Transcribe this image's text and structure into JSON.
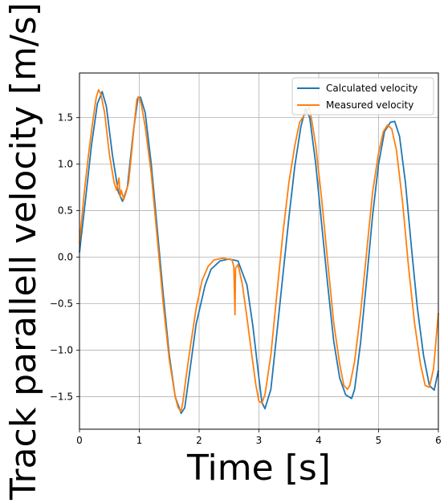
{
  "chart_data": {
    "type": "line",
    "xlabel": "Time [s]",
    "ylabel": "Track parallell velocity [m/s]",
    "xlim": [
      0,
      6
    ],
    "ylim": [
      -1.85,
      1.98
    ],
    "xticks": [
      0,
      1,
      2,
      3,
      4,
      5,
      6
    ],
    "yticks": [
      -1.5,
      -1.0,
      -0.5,
      0.0,
      0.5,
      1.0,
      1.5
    ],
    "xtick_labels": [
      "0",
      "1",
      "2",
      "3",
      "4",
      "5",
      "6"
    ],
    "ytick_labels": [
      "−1.5",
      "−1.0",
      "−0.5",
      "0.0",
      "0.5",
      "1.0",
      "1.5"
    ],
    "grid": true,
    "legend_position": "top-right",
    "series": [
      {
        "name": "Calculated velocity",
        "color": "#1f77b4",
        "points": [
          [
            0,
            0.05
          ],
          [
            0.1,
            0.62
          ],
          [
            0.2,
            1.2
          ],
          [
            0.3,
            1.65
          ],
          [
            0.38,
            1.78
          ],
          [
            0.45,
            1.62
          ],
          [
            0.55,
            1.1
          ],
          [
            0.65,
            0.7
          ],
          [
            0.72,
            0.6
          ],
          [
            0.8,
            0.75
          ],
          [
            0.9,
            1.35
          ],
          [
            0.98,
            1.72
          ],
          [
            1.02,
            1.72
          ],
          [
            1.1,
            1.55
          ],
          [
            1.2,
            1.0
          ],
          [
            1.3,
            0.3
          ],
          [
            1.4,
            -0.4
          ],
          [
            1.5,
            -1.05
          ],
          [
            1.6,
            -1.5
          ],
          [
            1.7,
            -1.68
          ],
          [
            1.76,
            -1.62
          ],
          [
            1.85,
            -1.2
          ],
          [
            1.95,
            -0.72
          ],
          [
            2.1,
            -0.3
          ],
          [
            2.2,
            -0.13
          ],
          [
            2.35,
            -0.04
          ],
          [
            2.5,
            -0.02
          ],
          [
            2.65,
            -0.04
          ],
          [
            2.8,
            -0.3
          ],
          [
            2.9,
            -0.75
          ],
          [
            3.0,
            -1.3
          ],
          [
            3.05,
            -1.56
          ],
          [
            3.1,
            -1.63
          ],
          [
            3.2,
            -1.42
          ],
          [
            3.3,
            -0.82
          ],
          [
            3.4,
            -0.2
          ],
          [
            3.5,
            0.42
          ],
          [
            3.6,
            0.98
          ],
          [
            3.7,
            1.4
          ],
          [
            3.78,
            1.6
          ],
          [
            3.85,
            1.5
          ],
          [
            3.95,
            1.0
          ],
          [
            4.05,
            0.35
          ],
          [
            4.15,
            -0.3
          ],
          [
            4.25,
            -0.9
          ],
          [
            4.35,
            -1.3
          ],
          [
            4.45,
            -1.48
          ],
          [
            4.55,
            -1.52
          ],
          [
            4.6,
            -1.42
          ],
          [
            4.7,
            -0.92
          ],
          [
            4.8,
            -0.25
          ],
          [
            4.9,
            0.45
          ],
          [
            5.0,
            1.0
          ],
          [
            5.1,
            1.35
          ],
          [
            5.2,
            1.45
          ],
          [
            5.27,
            1.46
          ],
          [
            5.35,
            1.3
          ],
          [
            5.45,
            0.8
          ],
          [
            5.55,
            0.1
          ],
          [
            5.65,
            -0.55
          ],
          [
            5.75,
            -1.05
          ],
          [
            5.85,
            -1.38
          ],
          [
            5.93,
            -1.43
          ],
          [
            6.0,
            -1.22
          ]
        ]
      },
      {
        "name": "Measured velocity",
        "color": "#ff7f0e",
        "points": [
          [
            0,
            0.15
          ],
          [
            0.08,
            0.7
          ],
          [
            0.15,
            1.1
          ],
          [
            0.22,
            1.45
          ],
          [
            0.28,
            1.72
          ],
          [
            0.32,
            1.8
          ],
          [
            0.36,
            1.75
          ],
          [
            0.42,
            1.55
          ],
          [
            0.5,
            1.1
          ],
          [
            0.58,
            0.8
          ],
          [
            0.62,
            0.72
          ],
          [
            0.66,
            0.85
          ],
          [
            0.68,
            0.65
          ],
          [
            0.7,
            0.72
          ],
          [
            0.74,
            0.62
          ],
          [
            0.78,
            0.7
          ],
          [
            0.82,
            0.8
          ],
          [
            0.86,
            1.05
          ],
          [
            0.92,
            1.45
          ],
          [
            0.96,
            1.7
          ],
          [
            1.0,
            1.72
          ],
          [
            1.04,
            1.62
          ],
          [
            1.1,
            1.4
          ],
          [
            1.2,
            0.9
          ],
          [
            1.3,
            0.2
          ],
          [
            1.4,
            -0.5
          ],
          [
            1.5,
            -1.1
          ],
          [
            1.6,
            -1.5
          ],
          [
            1.65,
            -1.62
          ],
          [
            1.7,
            -1.66
          ],
          [
            1.73,
            -1.55
          ],
          [
            1.78,
            -1.3
          ],
          [
            1.85,
            -0.98
          ],
          [
            1.95,
            -0.55
          ],
          [
            2.05,
            -0.25
          ],
          [
            2.15,
            -0.1
          ],
          [
            2.25,
            -0.03
          ],
          [
            2.4,
            -0.01
          ],
          [
            2.55,
            -0.03
          ],
          [
            2.58,
            -0.1
          ],
          [
            2.6,
            -0.62
          ],
          [
            2.61,
            -0.12
          ],
          [
            2.65,
            -0.08
          ],
          [
            2.72,
            -0.28
          ],
          [
            2.8,
            -0.65
          ],
          [
            2.88,
            -1.05
          ],
          [
            2.95,
            -1.38
          ],
          [
            3.0,
            -1.55
          ],
          [
            3.05,
            -1.57
          ],
          [
            3.1,
            -1.48
          ],
          [
            3.2,
            -1.05
          ],
          [
            3.3,
            -0.4
          ],
          [
            3.4,
            0.25
          ],
          [
            3.5,
            0.8
          ],
          [
            3.6,
            1.2
          ],
          [
            3.68,
            1.45
          ],
          [
            3.75,
            1.52
          ],
          [
            3.8,
            1.55
          ],
          [
            3.84,
            1.62
          ],
          [
            3.88,
            1.48
          ],
          [
            3.95,
            1.2
          ],
          [
            4.05,
            0.62
          ],
          [
            4.15,
            -0.05
          ],
          [
            4.25,
            -0.7
          ],
          [
            4.35,
            -1.15
          ],
          [
            4.42,
            -1.38
          ],
          [
            4.48,
            -1.42
          ],
          [
            4.52,
            -1.38
          ],
          [
            4.6,
            -1.12
          ],
          [
            4.7,
            -0.6
          ],
          [
            4.8,
            0.05
          ],
          [
            4.9,
            0.7
          ],
          [
            5.0,
            1.12
          ],
          [
            5.08,
            1.35
          ],
          [
            5.15,
            1.42
          ],
          [
            5.22,
            1.38
          ],
          [
            5.3,
            1.15
          ],
          [
            5.4,
            0.6
          ],
          [
            5.5,
            -0.1
          ],
          [
            5.6,
            -0.7
          ],
          [
            5.7,
            -1.15
          ],
          [
            5.78,
            -1.38
          ],
          [
            5.85,
            -1.4
          ],
          [
            5.92,
            -1.2
          ],
          [
            6.0,
            -0.6
          ]
        ]
      }
    ]
  }
}
